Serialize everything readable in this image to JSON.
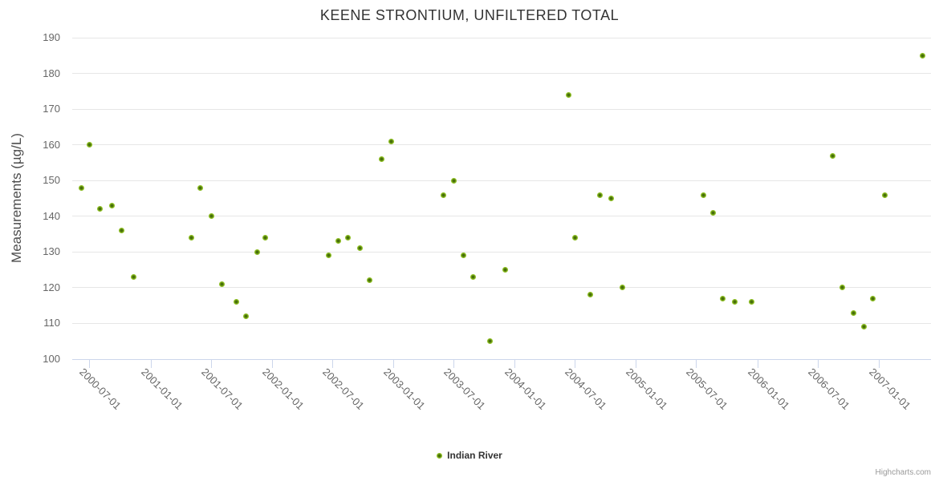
{
  "title": "KEENE STRONTIUM, UNFILTERED TOTAL",
  "y_axis": {
    "title": "Measurements (µg/L)"
  },
  "legend": {
    "series_label": "Indian River"
  },
  "credits": "Highcharts.com",
  "colors": {
    "marker_ring": "#8bbc21",
    "marker_core": "#476f0b",
    "grid": "#e6e6e6",
    "axis_line": "#ccd6eb",
    "title_text": "#333333",
    "label_text": "#666666"
  },
  "chart_data": {
    "type": "scatter",
    "title": "KEENE STRONTIUM, UNFILTERED TOTAL",
    "xlabel": "",
    "ylabel": "Measurements (µg/L)",
    "ylim": [
      100,
      190
    ],
    "y_tick_interval": 10,
    "grid": "horizontal-only",
    "legend_position": "bottom-center",
    "x_range": [
      "2000-05-10",
      "2007-06-07"
    ],
    "x_ticks": [
      "2000-07-01",
      "2001-01-01",
      "2001-07-01",
      "2002-01-01",
      "2002-07-01",
      "2003-01-01",
      "2003-07-01",
      "2004-01-01",
      "2004-07-01",
      "2005-01-01",
      "2005-07-01",
      "2006-01-01",
      "2006-07-01",
      "2007-01-01"
    ],
    "series": [
      {
        "name": "Indian River",
        "color": "#8bbc21",
        "points": [
          [
            "2000-06-06",
            148
          ],
          [
            "2000-07-02",
            160
          ],
          [
            "2000-08-01",
            142
          ],
          [
            "2000-09-08",
            143
          ],
          [
            "2000-10-05",
            136
          ],
          [
            "2000-11-10",
            123
          ],
          [
            "2001-05-03",
            134
          ],
          [
            "2001-05-30",
            148
          ],
          [
            "2001-07-04",
            140
          ],
          [
            "2001-08-04",
            121
          ],
          [
            "2001-09-15",
            116
          ],
          [
            "2001-10-14",
            112
          ],
          [
            "2001-11-19",
            130
          ],
          [
            "2001-12-11",
            134
          ],
          [
            "2002-06-21",
            129
          ],
          [
            "2002-07-20",
            133
          ],
          [
            "2002-08-18",
            134
          ],
          [
            "2002-09-24",
            131
          ],
          [
            "2002-10-23",
            122
          ],
          [
            "2002-11-28",
            156
          ],
          [
            "2002-12-27",
            161
          ],
          [
            "2003-06-02",
            146
          ],
          [
            "2003-07-03",
            150
          ],
          [
            "2003-08-01",
            129
          ],
          [
            "2003-08-28",
            123
          ],
          [
            "2003-10-18",
            105
          ],
          [
            "2003-12-03",
            125
          ],
          [
            "2004-06-11",
            174
          ],
          [
            "2004-07-02",
            134
          ],
          [
            "2004-08-17",
            118
          ],
          [
            "2004-09-13",
            146
          ],
          [
            "2004-10-19",
            145
          ],
          [
            "2004-11-20",
            120
          ],
          [
            "2005-07-24",
            146
          ],
          [
            "2005-08-20",
            141
          ],
          [
            "2005-09-18",
            117
          ],
          [
            "2005-10-24",
            116
          ],
          [
            "2005-12-14",
            116
          ],
          [
            "2006-08-15",
            157
          ],
          [
            "2006-09-13",
            120
          ],
          [
            "2006-10-17",
            113
          ],
          [
            "2006-11-17",
            109
          ],
          [
            "2006-12-14",
            117
          ],
          [
            "2007-01-19",
            146
          ],
          [
            "2007-05-13",
            185
          ]
        ]
      }
    ]
  }
}
